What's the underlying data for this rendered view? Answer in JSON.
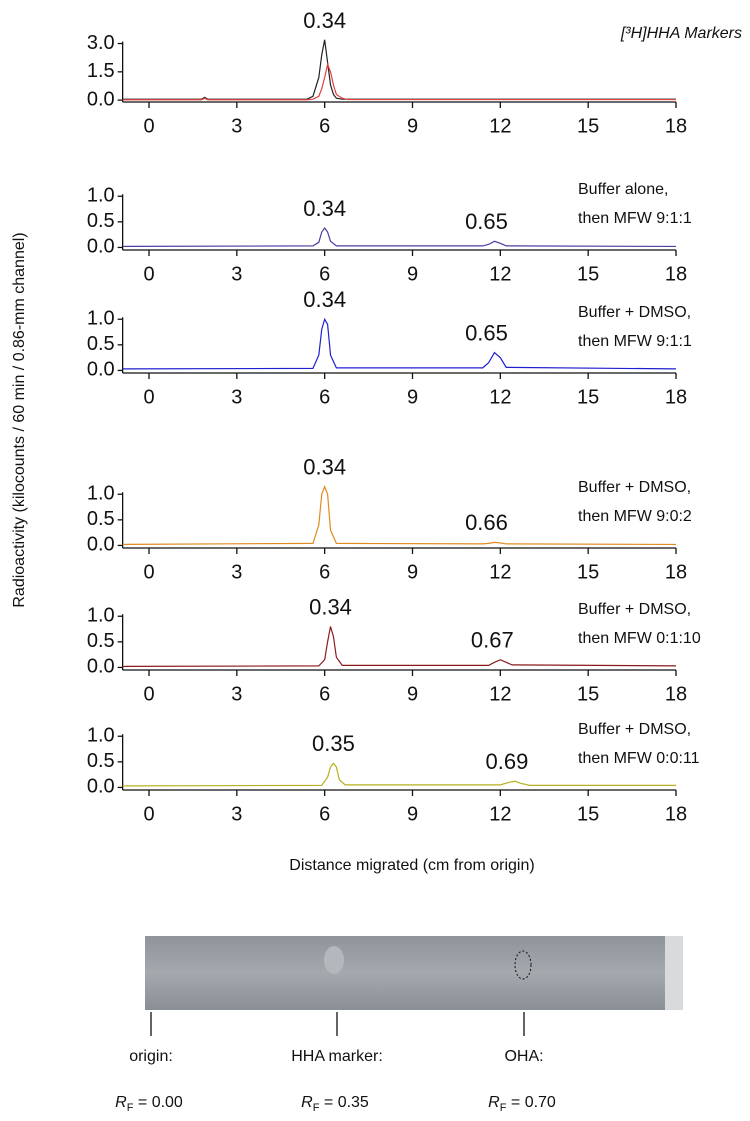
{
  "axis_labels": {
    "y": "Radioactivity (kilocounts / 60 min / 0.86-mm channel)",
    "x": "Distance migrated (cm from origin)"
  },
  "chart_data": [
    {
      "type": "line",
      "label": [
        "[³H]HHA Markers"
      ],
      "annotations": [
        "0.34"
      ],
      "x": [
        -0.9,
        1.8,
        1.9,
        2.0,
        5.4,
        5.6,
        5.8,
        5.9,
        6.0,
        6.1,
        6.2,
        6.3,
        6.4,
        6.6,
        6.8,
        18
      ],
      "series": [
        {
          "color": "#222222",
          "values": [
            0.05,
            0.05,
            0.15,
            0.05,
            0.05,
            0.2,
            1.2,
            2.4,
            3.2,
            2.0,
            0.8,
            0.3,
            0.1,
            0.05,
            0.05,
            0.05
          ]
        },
        {
          "color": "#e04040",
          "values": [
            0.02,
            0.02,
            0.1,
            0.02,
            0.02,
            0.05,
            0.2,
            0.6,
            1.2,
            1.9,
            1.5,
            0.8,
            0.3,
            0.1,
            0.03,
            0.03
          ]
        }
      ],
      "xlim": [
        -0.9,
        18
      ],
      "xticks": [
        0,
        3,
        6,
        9,
        12,
        15,
        18
      ],
      "ylim": [
        -0.1,
        3.4
      ],
      "yticks": [
        {
          "value": 0,
          "label": "0.0"
        },
        {
          "value": 1.5,
          "label": "1.5"
        },
        {
          "value": 3,
          "label": "3.0"
        }
      ]
    },
    {
      "type": "line",
      "label": [
        "Buffer alone,",
        "then MFW 9:1:1"
      ],
      "annotations": [
        "0.34",
        "0.65"
      ],
      "x": [
        -0.9,
        5.6,
        5.8,
        5.9,
        6.0,
        6.1,
        6.2,
        6.4,
        11.4,
        11.6,
        11.8,
        12.0,
        12.2,
        18
      ],
      "series": [
        {
          "color": "#4b3ca0",
          "values": [
            0.02,
            0.03,
            0.1,
            0.3,
            0.38,
            0.3,
            0.12,
            0.03,
            0.03,
            0.06,
            0.12,
            0.08,
            0.03,
            0.02
          ]
        }
      ],
      "xlim": [
        -0.9,
        18
      ],
      "xticks": [
        0,
        3,
        6,
        9,
        12,
        15,
        18
      ],
      "ylim": [
        -0.05,
        1.2
      ],
      "yticks": [
        {
          "value": 0,
          "label": "0.0"
        },
        {
          "value": 0.5,
          "label": "0.5"
        },
        {
          "value": 1,
          "label": "1.0"
        }
      ]
    },
    {
      "type": "line",
      "label": [
        "Buffer + DMSO,",
        "then MFW 9:1:1"
      ],
      "annotations": [
        "0.34",
        "0.65"
      ],
      "x": [
        -0.9,
        5.6,
        5.8,
        5.9,
        6.0,
        6.1,
        6.2,
        6.4,
        11.4,
        11.6,
        11.8,
        12.0,
        12.2,
        18
      ],
      "series": [
        {
          "color": "#2020d0",
          "values": [
            0.03,
            0.04,
            0.3,
            0.8,
            1.0,
            0.9,
            0.3,
            0.05,
            0.05,
            0.15,
            0.35,
            0.25,
            0.06,
            0.03
          ]
        }
      ],
      "xlim": [
        -0.9,
        18
      ],
      "xticks": [
        0,
        3,
        6,
        9,
        12,
        15,
        18
      ],
      "ylim": [
        -0.05,
        1.2
      ],
      "yticks": [
        {
          "value": 0,
          "label": "0.0"
        },
        {
          "value": 0.5,
          "label": "0.5"
        },
        {
          "value": 1,
          "label": "1.0"
        }
      ]
    },
    {
      "type": "line",
      "label": [
        "Buffer + DMSO,",
        "then MFW 9:0:2"
      ],
      "annotations": [
        "0.34",
        "0.66"
      ],
      "x": [
        -0.9,
        5.6,
        5.8,
        5.9,
        6.0,
        6.1,
        6.2,
        6.4,
        11.4,
        11.6,
        11.8,
        12.0,
        12.2,
        18
      ],
      "series": [
        {
          "color": "#e08a20",
          "values": [
            0.02,
            0.04,
            0.4,
            1.0,
            1.15,
            1.0,
            0.3,
            0.04,
            0.03,
            0.04,
            0.06,
            0.05,
            0.03,
            0.02
          ]
        }
      ],
      "xlim": [
        -0.9,
        18
      ],
      "xticks": [
        0,
        3,
        6,
        9,
        12,
        15,
        18
      ],
      "ylim": [
        -0.05,
        1.2
      ],
      "yticks": [
        {
          "value": 0,
          "label": "0.0"
        },
        {
          "value": 0.5,
          "label": "0.5"
        },
        {
          "value": 1,
          "label": "1.0"
        }
      ]
    },
    {
      "type": "line",
      "label": [
        "Buffer + DMSO,",
        "then MFW 0:1:10"
      ],
      "annotations": [
        "0.34",
        "0.67"
      ],
      "x": [
        -0.9,
        5.8,
        6.0,
        6.1,
        6.2,
        6.3,
        6.4,
        6.6,
        11.6,
        11.8,
        12.0,
        12.2,
        12.4,
        18
      ],
      "series": [
        {
          "color": "#8b1a1a",
          "values": [
            0.02,
            0.03,
            0.15,
            0.5,
            0.8,
            0.6,
            0.2,
            0.04,
            0.04,
            0.1,
            0.15,
            0.1,
            0.05,
            0.03
          ]
        }
      ],
      "xlim": [
        -0.9,
        18
      ],
      "xticks": [
        0,
        3,
        6,
        9,
        12,
        15,
        18
      ],
      "ylim": [
        -0.05,
        1.2
      ],
      "yticks": [
        {
          "value": 0,
          "label": "0.0"
        },
        {
          "value": 0.5,
          "label": "0.5"
        },
        {
          "value": 1,
          "label": "1.0"
        }
      ]
    },
    {
      "type": "line",
      "label": [
        "Buffer + DMSO,",
        "then MFW 0:0:11"
      ],
      "annotations": [
        "0.35",
        "0.69"
      ],
      "x": [
        -0.9,
        5.9,
        6.1,
        6.2,
        6.3,
        6.4,
        6.5,
        6.7,
        12.0,
        12.3,
        12.5,
        12.7,
        13.0,
        18
      ],
      "series": [
        {
          "color": "#b8b020",
          "values": [
            0.03,
            0.04,
            0.2,
            0.4,
            0.47,
            0.4,
            0.15,
            0.05,
            0.05,
            0.1,
            0.12,
            0.08,
            0.04,
            0.04
          ]
        }
      ],
      "xlim": [
        -0.9,
        18
      ],
      "xticks": [
        0,
        3,
        6,
        9,
        12,
        15,
        18
      ],
      "ylim": [
        -0.05,
        1.2
      ],
      "yticks": [
        {
          "value": 0,
          "label": "0.0"
        },
        {
          "value": 0.5,
          "label": "0.5"
        },
        {
          "value": 1,
          "label": "1.0"
        }
      ]
    }
  ],
  "plate": {
    "rf_symbol": "R",
    "rf_subscript": "F",
    "markers": [
      {
        "label": "origin:",
        "rf": "= 0.00"
      },
      {
        "label": "HHA marker:",
        "rf": "= 0.35"
      },
      {
        "label": "OHA:",
        "rf": "= 0.70"
      }
    ]
  }
}
